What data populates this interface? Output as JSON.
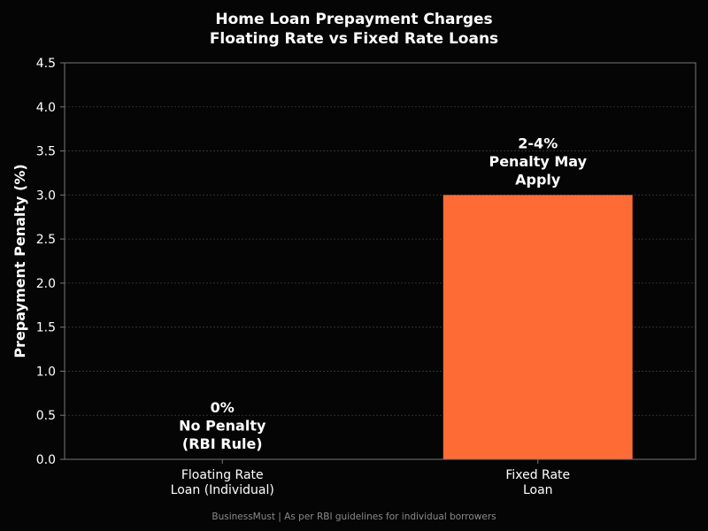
{
  "chart_data": {
    "type": "bar",
    "title": "Home Loan Prepayment Charges",
    "subtitle": "Floating Rate vs Fixed Rate Loans",
    "ylabel": "Prepayment Penalty (%)",
    "xlabel": "",
    "ylim": [
      0,
      4.5
    ],
    "yticks": [
      "0.0",
      "0.5",
      "1.0",
      "1.5",
      "2.0",
      "2.5",
      "3.0",
      "3.5",
      "4.0",
      "4.5"
    ],
    "grid": true,
    "categories": [
      [
        "Floating Rate",
        "Loan (Individual)"
      ],
      [
        "Fixed Rate",
        "Loan"
      ]
    ],
    "values": [
      0,
      3
    ],
    "colors": [
      "#2ecc71",
      "#ff6b35"
    ],
    "annotations": [
      [
        "0%",
        "No Penalty",
        "(RBI Rule)"
      ],
      [
        "2-4%",
        "Penalty May",
        "Apply"
      ]
    ]
  },
  "footer": "BusinessMust  |  As per RBI guidelines for individual borrowers",
  "colors": {
    "background": "#050505",
    "axis": "#777777",
    "grid": "#3a3a3a",
    "text": "#ffffff",
    "footer": "#8a8a8a"
  }
}
